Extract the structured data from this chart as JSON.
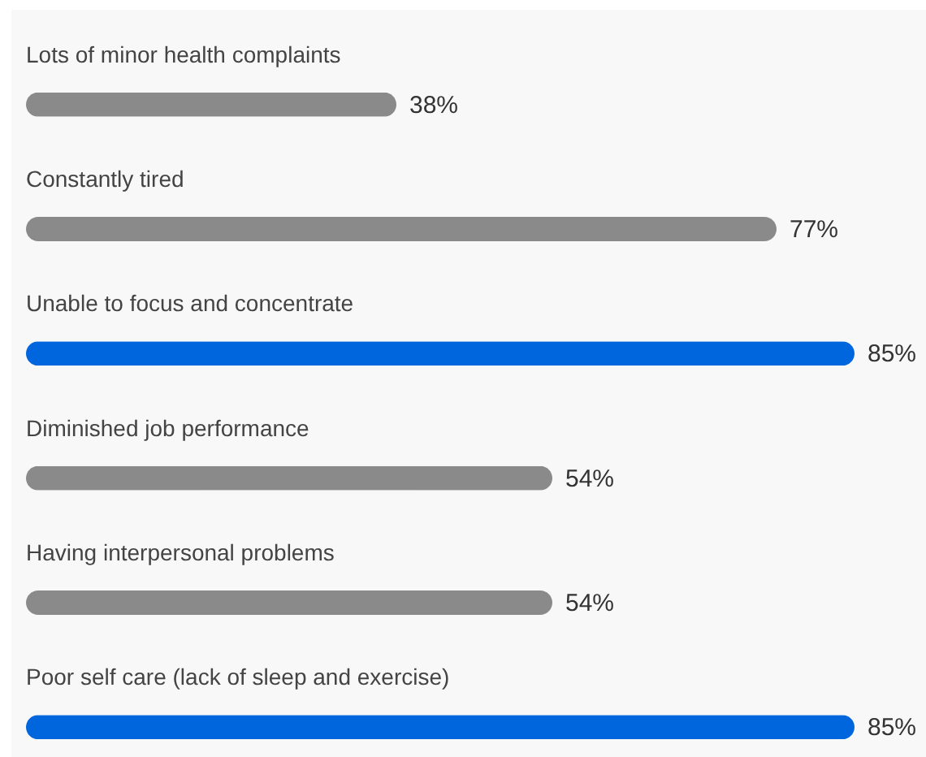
{
  "chart_data": {
    "type": "bar",
    "orientation": "horizontal",
    "categories": [
      "Lots of minor health complaints",
      "Constantly tired",
      "Unable to focus and concentrate",
      "Diminished job performance",
      "Having interpersonal problems",
      "Poor self care (lack of sleep and exercise)"
    ],
    "values": [
      38,
      77,
      85,
      54,
      54,
      85
    ],
    "colors": [
      "#8a8a8a",
      "#8a8a8a",
      "#0066dd",
      "#8a8a8a",
      "#8a8a8a",
      "#0066dd"
    ],
    "value_labels": [
      "38%",
      "77%",
      "85%",
      "54%",
      "54%",
      "85%"
    ],
    "tick_labels": "y"
  }
}
